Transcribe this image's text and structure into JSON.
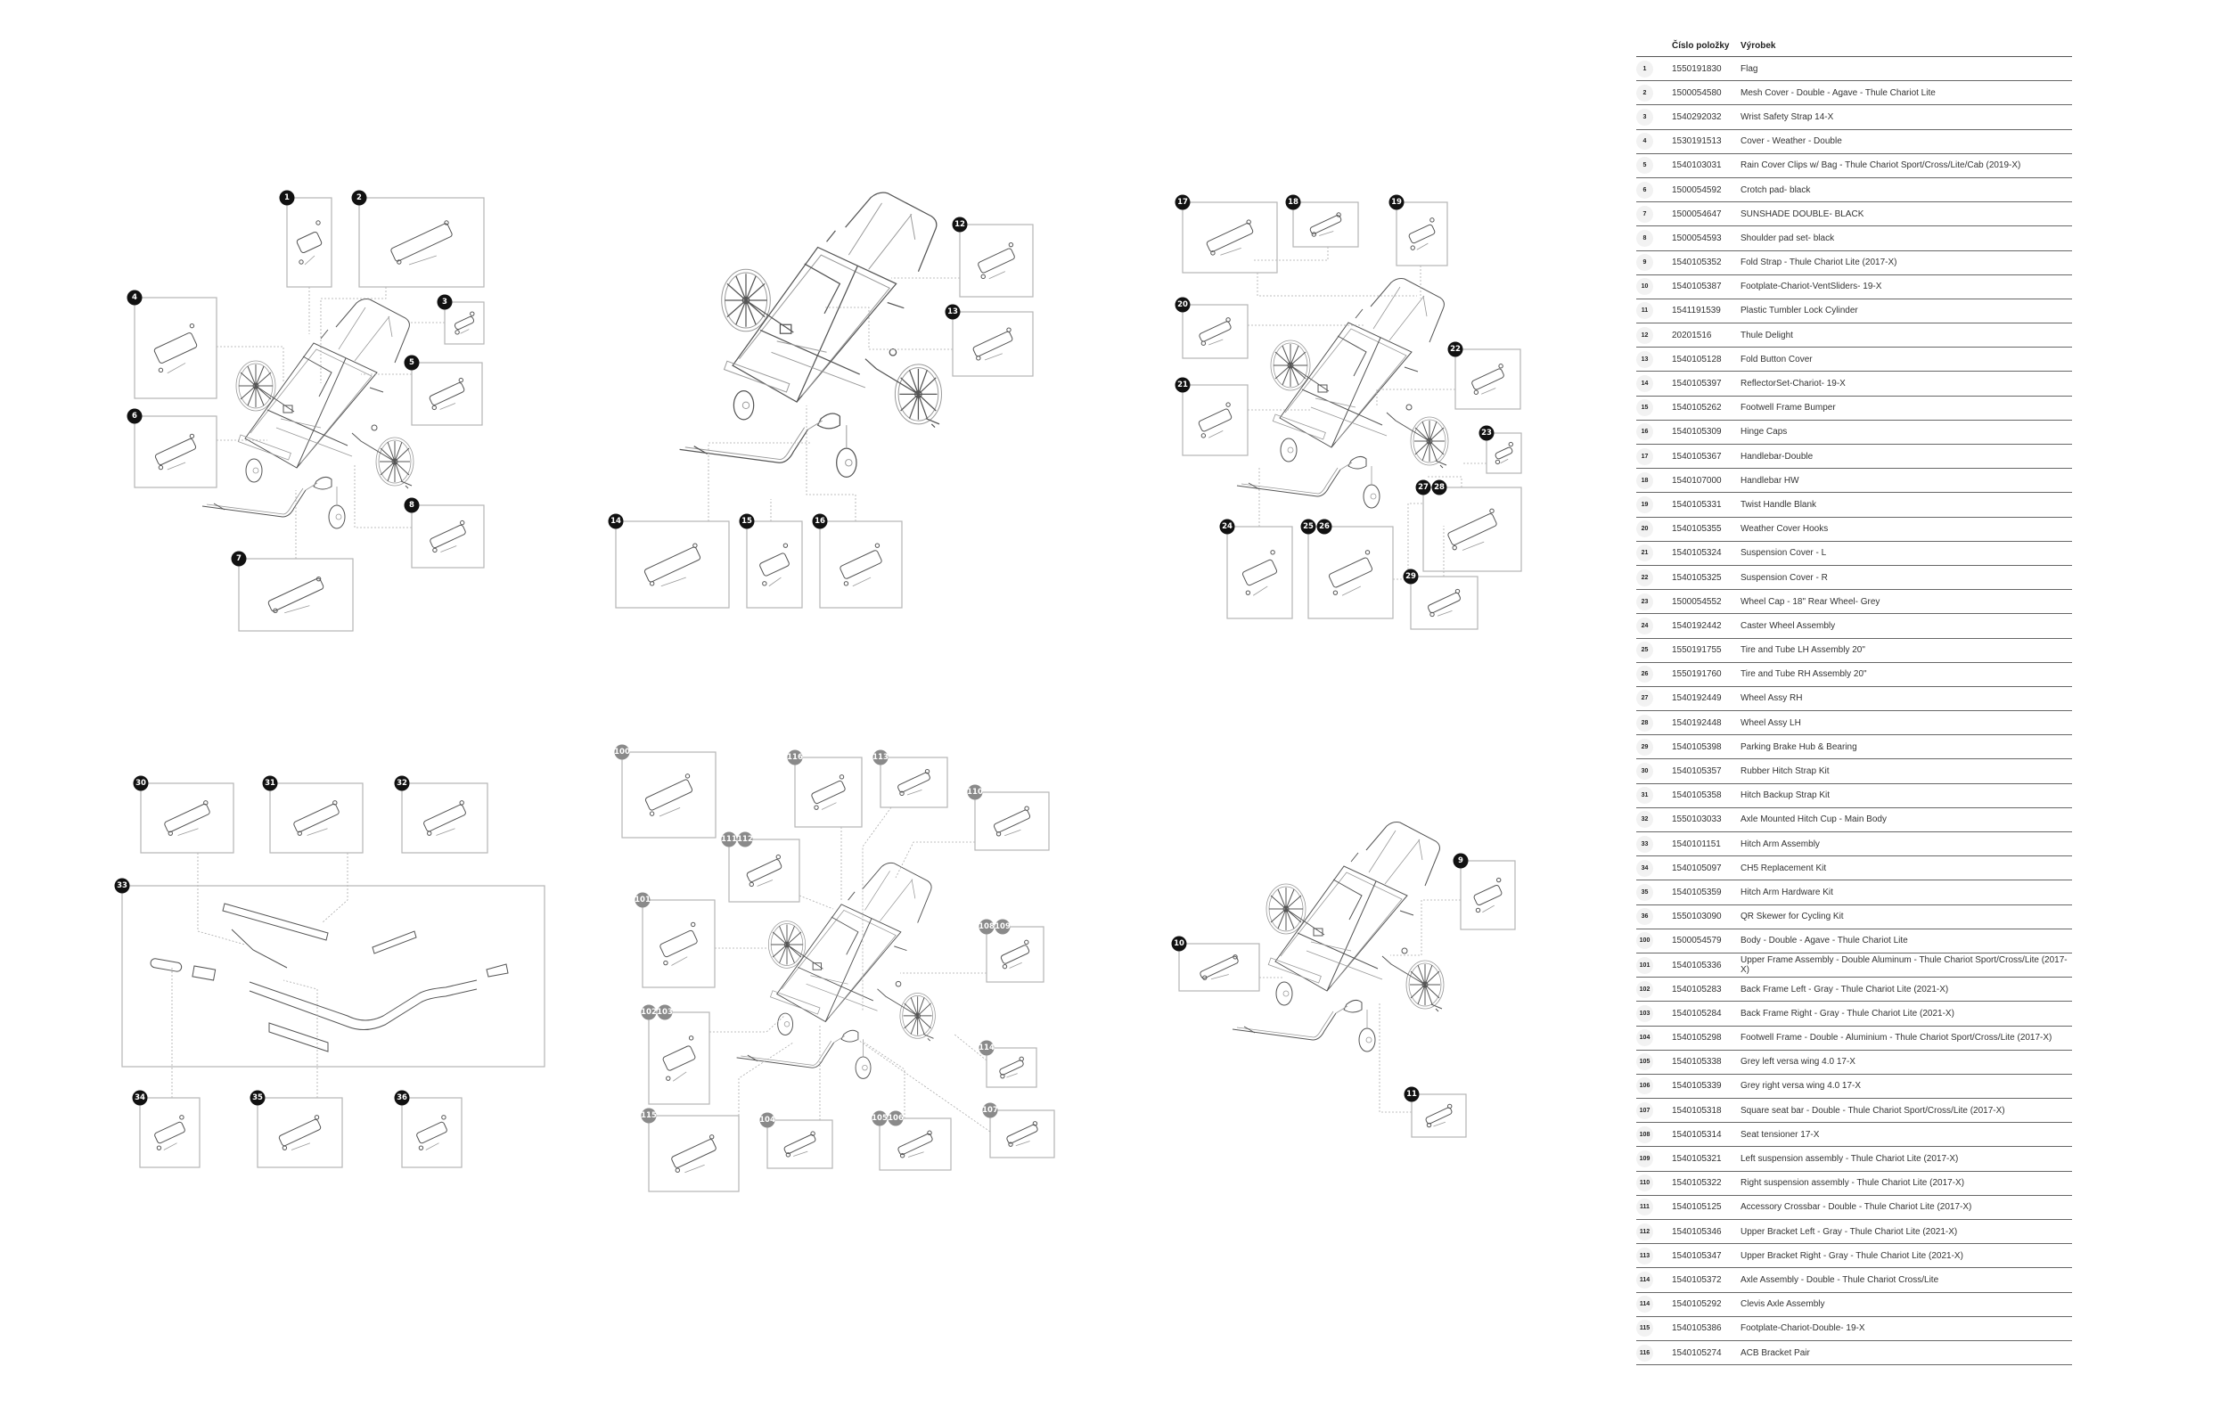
{
  "colors": {
    "badge_primary": "#111111",
    "badge_secondary": "#8a8a8a",
    "box_stroke": "#b5b5b5"
  },
  "callouts": [
    [
      "1"
    ],
    [
      "2"
    ],
    [
      "3"
    ],
    [
      "4"
    ],
    [
      "5"
    ],
    [
      "6"
    ],
    [
      "7"
    ],
    [
      "8"
    ],
    [
      "12"
    ],
    [
      "13"
    ],
    [
      "14"
    ],
    [
      "15"
    ],
    [
      "16"
    ],
    [
      "17"
    ],
    [
      "18"
    ],
    [
      "19"
    ],
    [
      "20"
    ],
    [
      "21"
    ],
    [
      "22"
    ],
    [
      "23"
    ],
    [
      "24"
    ],
    [
      "25",
      "26"
    ],
    [
      "27",
      "28"
    ],
    [
      "29"
    ],
    [
      "30"
    ],
    [
      "31"
    ],
    [
      "32"
    ],
    [
      "33"
    ],
    [
      "34"
    ],
    [
      "35"
    ],
    [
      "36"
    ],
    [
      "100"
    ],
    [
      "116"
    ],
    [
      "113"
    ],
    [
      "110"
    ],
    [
      "111",
      "112"
    ],
    [
      "101"
    ],
    [
      "108",
      "109"
    ],
    [
      "102",
      "103"
    ],
    [
      "114"
    ],
    [
      "115"
    ],
    [
      "104"
    ],
    [
      "105",
      "106"
    ],
    [
      "107"
    ],
    [
      "9"
    ],
    [
      "10"
    ],
    [
      "11"
    ]
  ],
  "table": {
    "headers": {
      "index": "",
      "part_number": "Číslo položky",
      "product": "Výrobek"
    },
    "rows": [
      {
        "index": "1",
        "part_number": "1550191830",
        "product": "Flag"
      },
      {
        "index": "2",
        "part_number": "1500054580",
        "product": "Mesh Cover - Double - Agave - Thule Chariot Lite"
      },
      {
        "index": "3",
        "part_number": "1540292032",
        "product": "Wrist Safety Strap 14-X"
      },
      {
        "index": "4",
        "part_number": "1530191513",
        "product": "Cover - Weather - Double"
      },
      {
        "index": "5",
        "part_number": "1540103031",
        "product": "Rain Cover Clips w/ Bag - Thule Chariot Sport/Cross/Lite/Cab (2019-X)"
      },
      {
        "index": "6",
        "part_number": "1500054592",
        "product": "Crotch pad- black"
      },
      {
        "index": "7",
        "part_number": "1500054647",
        "product": "SUNSHADE DOUBLE- BLACK"
      },
      {
        "index": "8",
        "part_number": "1500054593",
        "product": "Shoulder pad set- black"
      },
      {
        "index": "9",
        "part_number": "1540105352",
        "product": "Fold Strap - Thule Chariot Lite (2017-X)"
      },
      {
        "index": "10",
        "part_number": "1540105387",
        "product": "Footplate-Chariot-VentSliders- 19-X"
      },
      {
        "index": "11",
        "part_number": "1541191539",
        "product": "Plastic Tumbler Lock Cylinder"
      },
      {
        "index": "12",
        "part_number": "20201516",
        "product": "Thule Delight"
      },
      {
        "index": "13",
        "part_number": "1540105128",
        "product": "Fold Button Cover"
      },
      {
        "index": "14",
        "part_number": "1540105397",
        "product": "ReflectorSet-Chariot- 19-X"
      },
      {
        "index": "15",
        "part_number": "1540105262",
        "product": "Footwell Frame Bumper"
      },
      {
        "index": "16",
        "part_number": "1540105309",
        "product": "Hinge Caps"
      },
      {
        "index": "17",
        "part_number": "1540105367",
        "product": "Handlebar-Double"
      },
      {
        "index": "18",
        "part_number": "1540107000",
        "product": "Handlebar HW"
      },
      {
        "index": "19",
        "part_number": "1540105331",
        "product": "Twist Handle Blank"
      },
      {
        "index": "20",
        "part_number": "1540105355",
        "product": "Weather Cover Hooks"
      },
      {
        "index": "21",
        "part_number": "1540105324",
        "product": "Suspension Cover - L"
      },
      {
        "index": "22",
        "part_number": "1540105325",
        "product": "Suspension Cover - R"
      },
      {
        "index": "23",
        "part_number": "1500054552",
        "product": "Wheel Cap - 18\" Rear Wheel- Grey"
      },
      {
        "index": "24",
        "part_number": "1540192442",
        "product": "Caster Wheel Assembly"
      },
      {
        "index": "25",
        "part_number": "1550191755",
        "product": "Tire and Tube LH Assembly 20\""
      },
      {
        "index": "26",
        "part_number": "1550191760",
        "product": "Tire and Tube RH Assembly 20\""
      },
      {
        "index": "27",
        "part_number": "1540192449",
        "product": "Wheel Assy RH"
      },
      {
        "index": "28",
        "part_number": "1540192448",
        "product": "Wheel Assy LH"
      },
      {
        "index": "29",
        "part_number": "1540105398",
        "product": "Parking Brake Hub & Bearing"
      },
      {
        "index": "30",
        "part_number": "1540105357",
        "product": "Rubber Hitch Strap Kit"
      },
      {
        "index": "31",
        "part_number": "1540105358",
        "product": "Hitch Backup Strap Kit"
      },
      {
        "index": "32",
        "part_number": "1550103033",
        "product": "Axle Mounted Hitch Cup - Main Body"
      },
      {
        "index": "33",
        "part_number": "1540101151",
        "product": "Hitch Arm Assembly"
      },
      {
        "index": "34",
        "part_number": "1540105097",
        "product": "CH5 Replacement Kit"
      },
      {
        "index": "35",
        "part_number": "1540105359",
        "product": "Hitch Arm Hardware Kit"
      },
      {
        "index": "36",
        "part_number": "1550103090",
        "product": "QR Skewer for Cycling Kit"
      },
      {
        "index": "100",
        "part_number": "1500054579",
        "product": "Body - Double - Agave - Thule Chariot Lite"
      },
      {
        "index": "101",
        "part_number": "1540105336",
        "product": "Upper Frame Assembly - Double Aluminum - Thule Chariot Sport/Cross/Lite (2017-X)"
      },
      {
        "index": "102",
        "part_number": "1540105283",
        "product": "Back Frame Left - Gray - Thule Chariot Lite (2021-X)"
      },
      {
        "index": "103",
        "part_number": "1540105284",
        "product": "Back Frame Right - Gray - Thule Chariot Lite (2021-X)"
      },
      {
        "index": "104",
        "part_number": "1540105298",
        "product": "Footwell Frame - Double - Aluminium - Thule Chariot Sport/Cross/Lite (2017-X)"
      },
      {
        "index": "105",
        "part_number": "1540105338",
        "product": "Grey left versa wing 4.0 17-X"
      },
      {
        "index": "106",
        "part_number": "1540105339",
        "product": "Grey right versa wing 4.0 17-X"
      },
      {
        "index": "107",
        "part_number": "1540105318",
        "product": "Square seat bar - Double - Thule Chariot Sport/Cross/Lite (2017-X)"
      },
      {
        "index": "108",
        "part_number": "1540105314",
        "product": "Seat tensioner 17-X"
      },
      {
        "index": "109",
        "part_number": "1540105321",
        "product": "Left suspension assembly - Thule Chariot Lite (2017-X)"
      },
      {
        "index": "110",
        "part_number": "1540105322",
        "product": "Right suspension assembly - Thule Chariot Lite (2017-X)"
      },
      {
        "index": "111",
        "part_number": "1540105125",
        "product": "Accessory Crossbar - Double - Thule Chariot Lite (2017-X)"
      },
      {
        "index": "112",
        "part_number": "1540105346",
        "product": "Upper Bracket Left - Gray - Thule Chariot Lite (2021-X)"
      },
      {
        "index": "113",
        "part_number": "1540105347",
        "product": "Upper Bracket Right - Gray - Thule Chariot Lite (2021-X)"
      },
      {
        "index": "114",
        "part_number": "1540105372",
        "product": "Axle Assembly - Double - Thule Chariot Cross/Lite"
      },
      {
        "index": "114",
        "part_number": "1540105292",
        "product": "Clevis Axle Assembly"
      },
      {
        "index": "115",
        "part_number": "1540105386",
        "product": "Footplate-Chariot-Double- 19-X"
      },
      {
        "index": "116",
        "part_number": "1540105274",
        "product": "ACB Bracket Pair"
      }
    ]
  }
}
